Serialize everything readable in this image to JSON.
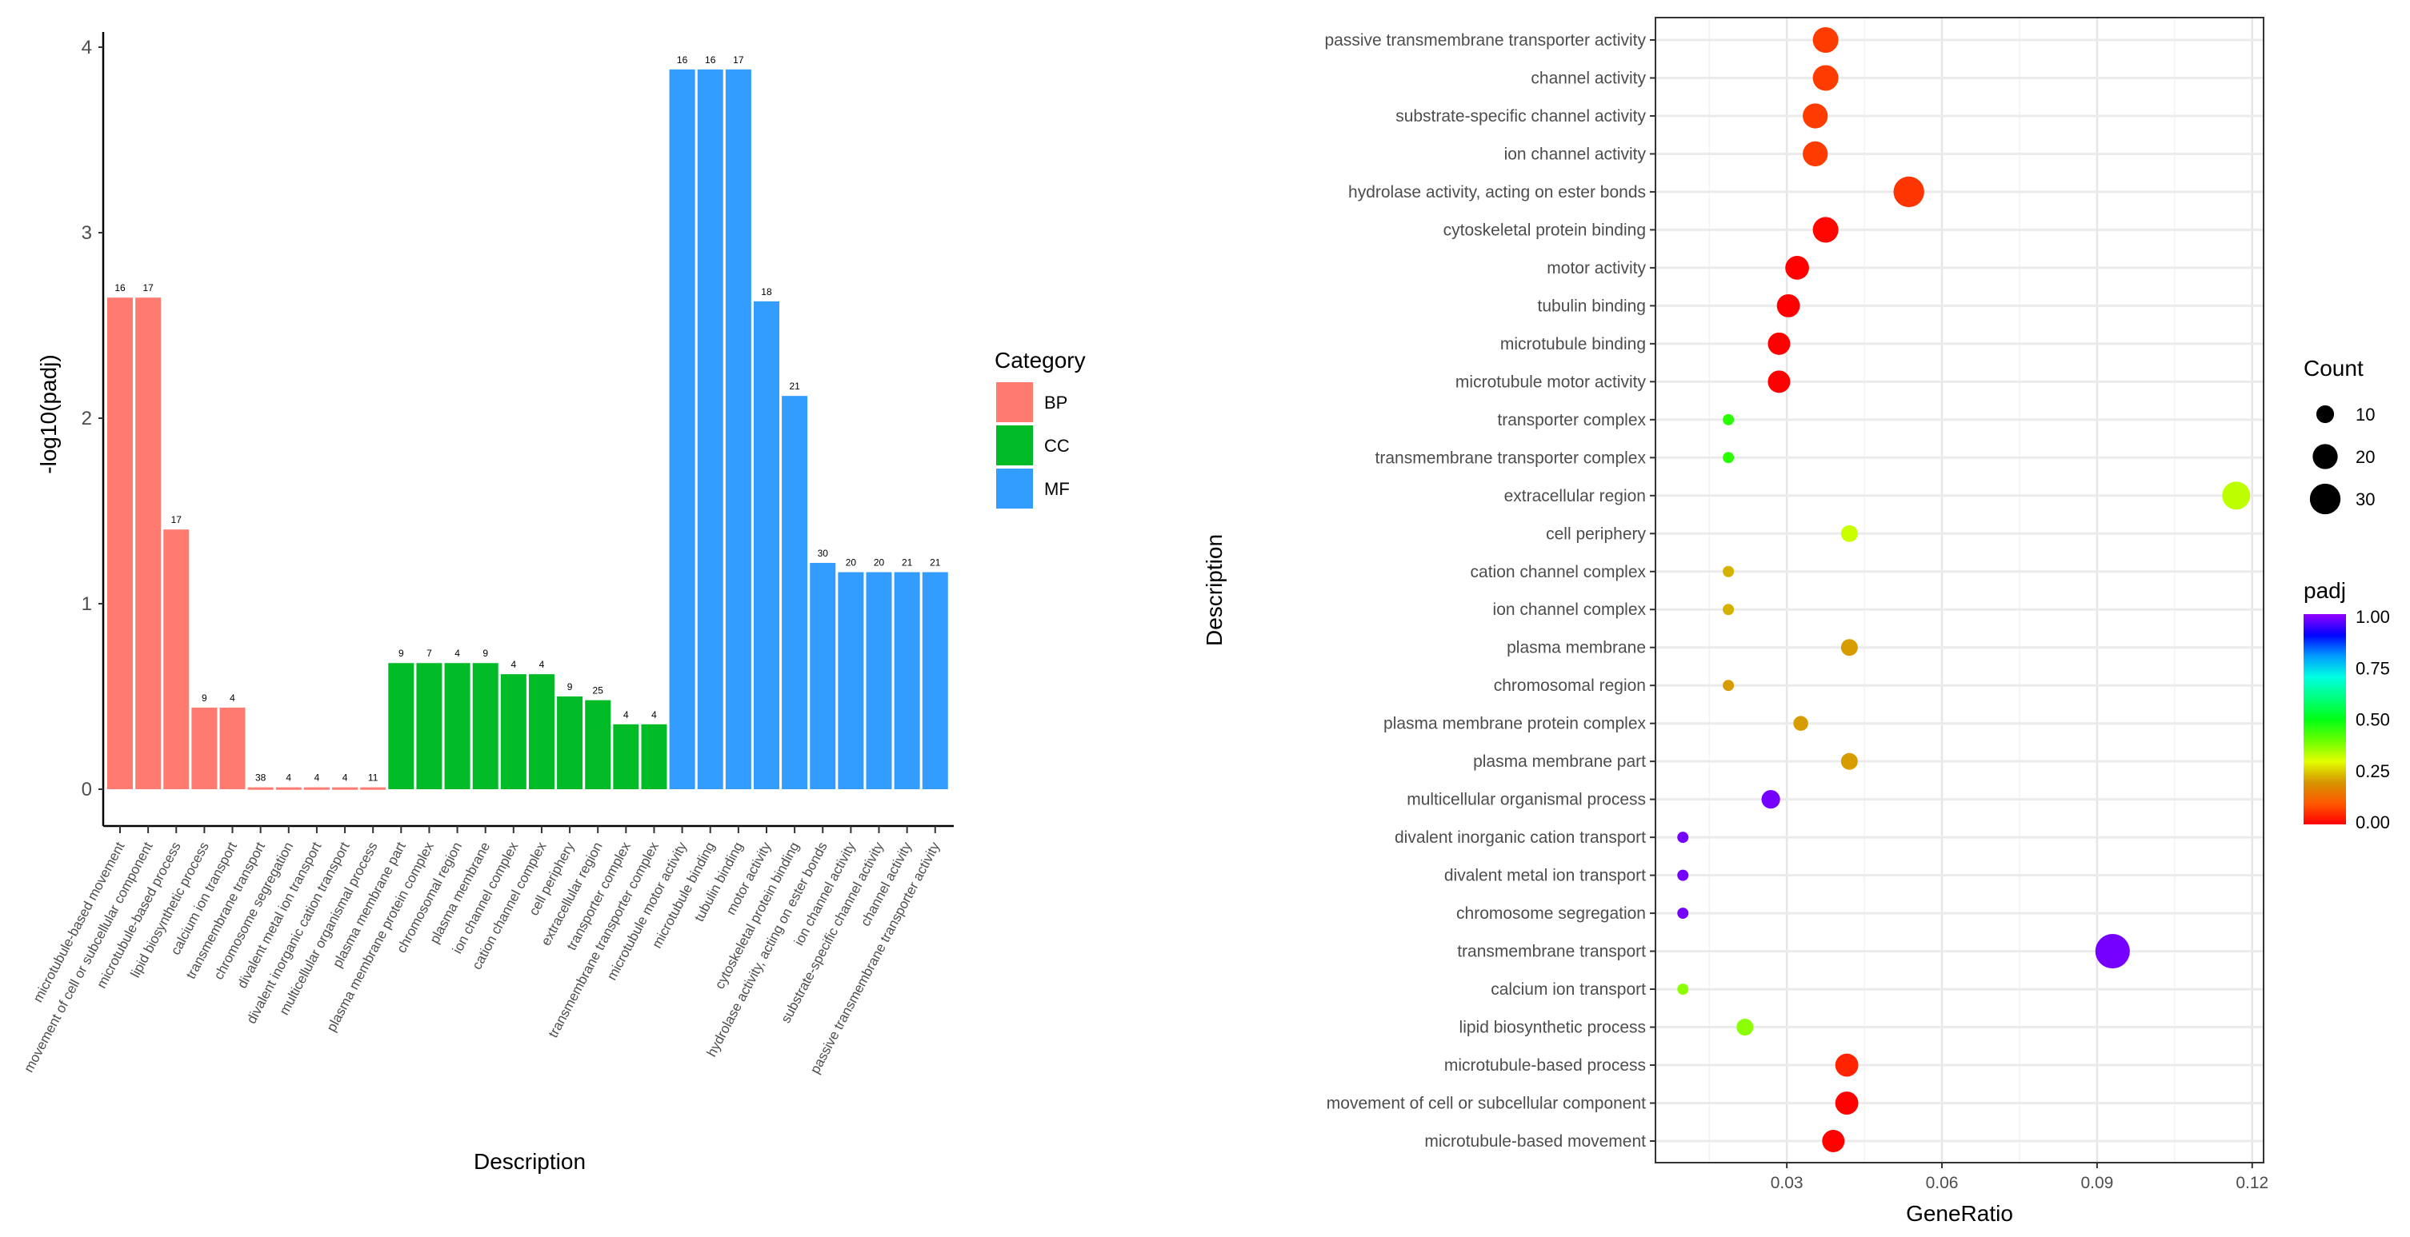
{
  "chart_data": [
    {
      "type": "bar",
      "title": "",
      "xlabel": "Description",
      "ylabel": "-log10(padj)",
      "ylim": [
        0,
        4
      ],
      "yticks": [
        "0",
        "1",
        "2",
        "3",
        "4"
      ],
      "legend": {
        "title": "Category",
        "position": "right",
        "entries": [
          "BP",
          "CC",
          "MF"
        ]
      },
      "colors": {
        "BP": "#FF7B70",
        "CC": "#00BB25",
        "MF": "#339CFF"
      },
      "categories": [
        "microtubule-based movement",
        "movement of cell or subcellular component",
        "microtubule-based process",
        "lipid biosynthetic process",
        "calcium ion transport",
        "transmembrane transport",
        "chromosome segregation",
        "divalent metal ion transport",
        "divalent inorganic cation transport",
        "multicellular organismal process",
        "plasma membrane part",
        "plasma membrane protein complex",
        "chromosomal region",
        "plasma membrane",
        "ion channel complex",
        "cation channel complex",
        "cell periphery",
        "extracellular region",
        "transporter complex",
        "transmembrane transporter complex",
        "microtubule motor activity",
        "microtubule binding",
        "tubulin binding",
        "motor activity",
        "cytoskeletal protein binding",
        "hydrolase activity, acting on ester bonds",
        "ion channel activity",
        "substrate-specific channel activity",
        "channel activity",
        "passive transmembrane transporter activity"
      ],
      "group": [
        "BP",
        "BP",
        "BP",
        "BP",
        "BP",
        "BP",
        "BP",
        "BP",
        "BP",
        "BP",
        "CC",
        "CC",
        "CC",
        "CC",
        "CC",
        "CC",
        "CC",
        "CC",
        "CC",
        "CC",
        "MF",
        "MF",
        "MF",
        "MF",
        "MF",
        "MF",
        "MF",
        "MF",
        "MF",
        "MF"
      ],
      "values": [
        2.65,
        2.65,
        1.4,
        0.44,
        0.44,
        0.01,
        0.01,
        0.01,
        0.01,
        0.01,
        0.68,
        0.68,
        0.68,
        0.68,
        0.62,
        0.62,
        0.5,
        0.48,
        0.35,
        0.35,
        3.88,
        3.88,
        3.88,
        2.63,
        2.12,
        1.22,
        1.17,
        1.17,
        1.17,
        1.17
      ],
      "data_labels": [
        "16",
        "17",
        "17",
        "9",
        "4",
        "38",
        "4",
        "4",
        "4",
        "11",
        "9",
        "7",
        "4",
        "9",
        "4",
        "4",
        "9",
        "25",
        "4",
        "4",
        "16",
        "16",
        "17",
        "18",
        "21",
        "30",
        "20",
        "20",
        "21",
        "21"
      ]
    },
    {
      "type": "scatter",
      "title": "",
      "xlabel": "GeneRatio",
      "ylabel": "Description",
      "xlim": [
        0.0046,
        0.1222
      ],
      "xticks": [
        "0.03",
        "0.06",
        "0.09",
        "0.12"
      ],
      "xtick_values": [
        0.03,
        0.06,
        0.09,
        0.12
      ],
      "size_legend": {
        "title": "Count",
        "entries": [
          "10",
          "20",
          "30"
        ],
        "values": [
          10,
          20,
          30
        ]
      },
      "color_legend": {
        "title": "padj",
        "ticks": [
          "1.00",
          "0.75",
          "0.50",
          "0.25",
          "0.00"
        ],
        "tick_values": [
          1,
          0.75,
          0.5,
          0.25,
          0
        ],
        "range": [
          0,
          1
        ]
      },
      "grid": true,
      "rows": [
        "passive transmembrane transporter activity",
        "channel activity",
        "substrate-specific channel activity",
        "ion channel activity",
        "hydrolase activity, acting on ester bonds",
        "cytoskeletal protein binding",
        "motor activity",
        "tubulin binding",
        "microtubule binding",
        "microtubule motor activity",
        "transporter complex",
        "transmembrane transporter complex",
        "extracellular region",
        "cell periphery",
        "cation channel complex",
        "ion channel complex",
        "plasma membrane",
        "chromosomal region",
        "plasma membrane protein complex",
        "plasma membrane part",
        "multicellular organismal process",
        "divalent inorganic cation transport",
        "divalent metal ion transport",
        "chromosome segregation",
        "transmembrane transport",
        "calcium ion transport",
        "lipid biosynthetic process",
        "microtubule-based process",
        "movement of cell or subcellular component",
        "microtubule-based movement"
      ],
      "gene_ratio": [
        0.0375,
        0.0375,
        0.0355,
        0.0355,
        0.0536,
        0.0375,
        0.032,
        0.0303,
        0.0285,
        0.0285,
        0.0187,
        0.0187,
        0.1169,
        0.0421,
        0.0187,
        0.0187,
        0.0421,
        0.0187,
        0.0327,
        0.0421,
        0.0269,
        0.0099,
        0.0099,
        0.0099,
        0.093,
        0.0099,
        0.0219,
        0.0416,
        0.0416,
        0.039
      ],
      "count": [
        21,
        21,
        20,
        20,
        30,
        21,
        18,
        17,
        16,
        16,
        4,
        4,
        25,
        9,
        4,
        4,
        9,
        4,
        7,
        9,
        11,
        4,
        4,
        4,
        38,
        4,
        9,
        17,
        17,
        16
      ],
      "padj": [
        0.068,
        0.068,
        0.068,
        0.068,
        0.06,
        0.0075,
        0.0023,
        0.00013,
        0.00013,
        0.00013,
        0.45,
        0.45,
        0.33,
        0.32,
        0.24,
        0.24,
        0.21,
        0.21,
        0.21,
        0.21,
        0.98,
        0.98,
        0.98,
        0.98,
        0.98,
        0.37,
        0.37,
        0.04,
        0.0022,
        0.0022
      ]
    }
  ]
}
